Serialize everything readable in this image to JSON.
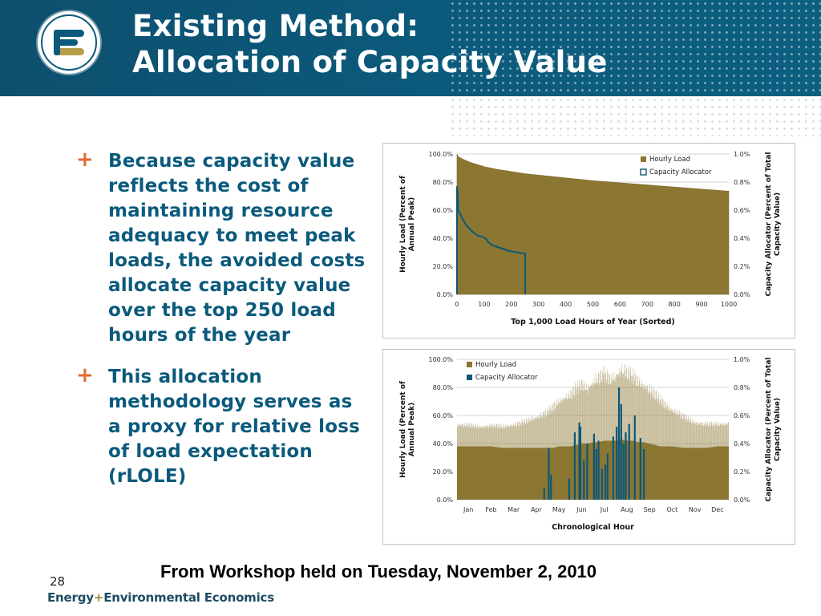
{
  "slide": {
    "title_line1": "Existing Method:",
    "title_line2": "Allocation of Capacity Value",
    "caption": "From Workshop held on Tuesday, November 2, 2010",
    "page_number": "28",
    "footer_logo_part1": "Energy",
    "footer_logo_plus": "+",
    "footer_logo_part2": "Environmental Economics",
    "logo": {
      "icon": "e3-logo",
      "text": "E3"
    },
    "colors": {
      "header": "#0b5a7c",
      "bullet_text": "#0b5a7c",
      "bullet_marker": "#e36b2e",
      "load_fill": "#8b7632",
      "allocator_line": "#0d5777"
    }
  },
  "bullets": [
    {
      "marker": "+",
      "text": "Because capacity value reflects the cost of maintaining resource adequacy to meet peak loads, the avoided costs allocate capacity value over the top 250 load hours of the year"
    },
    {
      "marker": "+",
      "text": "This allocation methodology serves as a proxy for relative loss of load expectation (rLOLE)"
    }
  ],
  "chart_data": [
    {
      "type": "area",
      "xlabel": "Top 1,000 Load Hours of Year (Sorted)",
      "ylabel": "Hourly Load (Percent of Annual Peak)",
      "y2label": "Capacity Allocator (Percent of Total Capacity Value)",
      "xlim": [
        0,
        1000
      ],
      "ylim": [
        0,
        100
      ],
      "y2lim": [
        0,
        1.0
      ],
      "x_ticks": [
        "0",
        "100",
        "200",
        "300",
        "400",
        "500",
        "600",
        "700",
        "800",
        "900",
        "1000"
      ],
      "y_ticks": [
        "0.0%",
        "20.0%",
        "40.0%",
        "60.0%",
        "80.0%",
        "100.0%"
      ],
      "y2_ticks": [
        "0.0%",
        "0.2%",
        "0.4%",
        "0.6%",
        "0.8%",
        "1.0%"
      ],
      "grid": true,
      "legend_position": "top-right",
      "series": [
        {
          "name": "Hourly Load",
          "kind": "area",
          "axis": "left",
          "color": "#8b7632",
          "x": [
            0,
            5,
            25,
            50,
            100,
            150,
            200,
            250,
            300,
            400,
            500,
            600,
            700,
            800,
            900,
            1000
          ],
          "y": [
            100,
            98,
            96,
            94,
            91,
            89,
            87.5,
            86,
            85,
            83,
            81,
            79.5,
            78,
            76.5,
            75,
            73.5
          ]
        },
        {
          "name": "Capacity Allocator",
          "kind": "line",
          "axis": "right",
          "color": "#0d5777",
          "x": [
            0,
            0,
            2,
            5,
            10,
            20,
            35,
            55,
            75,
            95,
            110,
            115,
            130,
            160,
            190,
            220,
            250,
            251,
            251
          ],
          "y2": [
            0,
            0.77,
            0.72,
            0.6,
            0.58,
            0.54,
            0.49,
            0.45,
            0.42,
            0.41,
            0.39,
            0.37,
            0.35,
            0.33,
            0.31,
            0.3,
            0.29,
            0.29,
            0.0
          ]
        }
      ]
    },
    {
      "type": "area",
      "xlabel": "Chronological Hour",
      "ylabel": "Hourly Load (Percent of Annual Peak)",
      "y2label": "Capacity Allocator (Percent of Total Capacity Value)",
      "categories": [
        "Jan",
        "Feb",
        "Mar",
        "Apr",
        "May",
        "Jun",
        "Jul",
        "Aug",
        "Sep",
        "Oct",
        "Nov",
        "Dec"
      ],
      "ylim": [
        0,
        100
      ],
      "y2lim": [
        0,
        1.0
      ],
      "y_ticks": [
        "0.0%",
        "20.0%",
        "40.0%",
        "60.0%",
        "80.0%",
        "100.0%"
      ],
      "y2_ticks": [
        "0.0%",
        "0.2%",
        "0.4%",
        "0.6%",
        "0.8%",
        "1.0%"
      ],
      "grid": true,
      "legend_position": "top-left",
      "series": [
        {
          "name": "Hourly Load",
          "kind": "area",
          "axis": "left",
          "color": "#8b7632",
          "x_months": [
            0.0,
            0.5,
            1.0,
            1.5,
            2.0,
            2.5,
            3.0,
            3.5,
            4.0,
            4.25,
            4.5,
            4.75,
            5.0,
            5.25,
            5.5,
            5.75,
            6.0,
            6.25,
            6.5,
            6.75,
            7.0,
            7.25,
            7.5,
            7.75,
            8.0,
            8.25,
            8.5,
            9.0,
            9.5,
            10.0,
            10.5,
            11.0,
            11.5,
            12.0
          ],
          "daily_peak": [
            56,
            55,
            54,
            55,
            54,
            56,
            58,
            62,
            66,
            70,
            75,
            78,
            80,
            84,
            88,
            85,
            90,
            93,
            96,
            92,
            95,
            100,
            97,
            94,
            91,
            88,
            84,
            75,
            68,
            62,
            58,
            56,
            56,
            57
          ],
          "baseline": [
            38,
            38,
            38,
            38,
            37,
            37,
            37,
            37,
            37,
            37,
            38,
            38,
            38,
            39,
            40,
            40,
            41,
            41,
            42,
            42,
            42,
            43,
            42,
            42,
            41,
            41,
            40,
            38,
            38,
            37,
            37,
            37,
            38,
            38
          ]
        },
        {
          "name": "Capacity Allocator",
          "kind": "spikes",
          "axis": "right",
          "color": "#0d5777",
          "x_months": [
            3.85,
            4.05,
            4.15,
            4.95,
            5.2,
            5.4,
            5.45,
            5.6,
            5.75,
            6.05,
            6.15,
            6.25,
            6.4,
            6.55,
            6.65,
            6.9,
            7.05,
            7.15,
            7.25,
            7.35,
            7.45,
            7.6,
            7.85,
            8.1,
            8.25
          ],
          "y2": [
            0.08,
            0.37,
            0.18,
            0.15,
            0.48,
            0.55,
            0.52,
            0.28,
            0.4,
            0.47,
            0.36,
            0.42,
            0.22,
            0.25,
            0.33,
            0.45,
            0.52,
            0.8,
            0.68,
            0.4,
            0.48,
            0.54,
            0.6,
            0.44,
            0.36
          ]
        }
      ]
    }
  ]
}
